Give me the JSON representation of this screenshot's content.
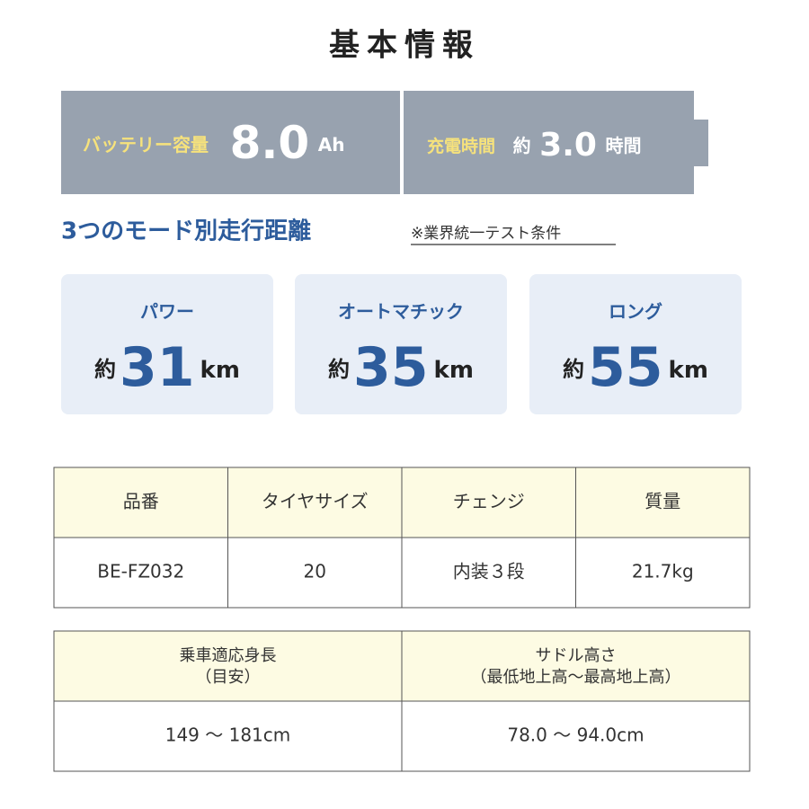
{
  "header": {
    "title": "基本情報"
  },
  "battery": {
    "capacity_label": "バッテリー容量",
    "capacity_value": "8.0",
    "capacity_unit": "Ah",
    "charge_label": "充電時間",
    "charge_prefix": "約",
    "charge_value": "3.0",
    "charge_unit": "時間"
  },
  "range": {
    "title": "3つのモード別走行距離",
    "note": "※業界統一テスト条件",
    "modes": [
      {
        "label": "パワー",
        "prefix": "約",
        "value": "31",
        "unit": "km"
      },
      {
        "label": "オートマチック",
        "prefix": "約",
        "value": "35",
        "unit": "km"
      },
      {
        "label": "ロング",
        "prefix": "約",
        "value": "55",
        "unit": "km"
      }
    ]
  },
  "table1": {
    "header": [
      "品番",
      "タイヤサイズ",
      "チェンジ",
      "質量"
    ],
    "rows": [
      [
        "BE-FZ032",
        "20",
        "内装３段",
        "21.7kg"
      ]
    ]
  },
  "table2": {
    "header": [
      [
        "乗車適応身長",
        "（目安）"
      ],
      [
        "サドル高さ",
        "（最低地上高～最高地上高）"
      ]
    ],
    "rows": [
      [
        "149 ～ 181cm",
        "78.0 ～ 94.0cm"
      ]
    ]
  }
}
